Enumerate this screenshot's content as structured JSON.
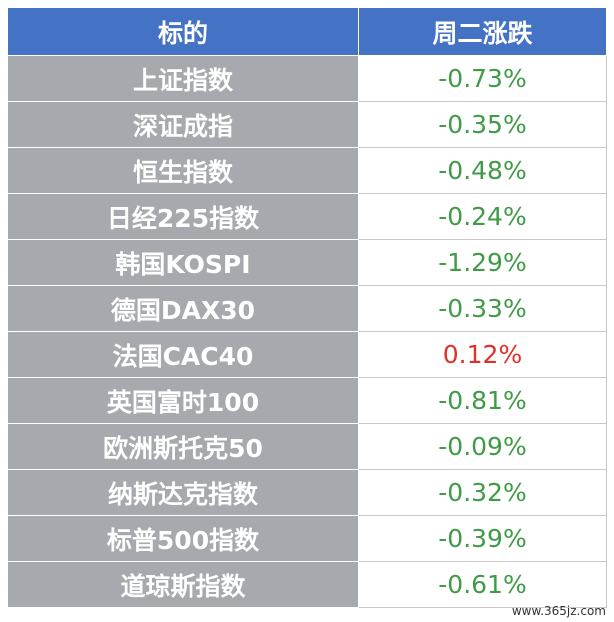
{
  "table": {
    "header": [
      "标的",
      "周二涨跌"
    ],
    "rows": [
      {
        "name": "上证指数",
        "change": "-0.73%",
        "color": "#3f9b45"
      },
      {
        "name": "深证成指",
        "change": "-0.35%",
        "color": "#3f9b45"
      },
      {
        "name": "恒生指数",
        "change": "-0.48%",
        "color": "#3f9b45"
      },
      {
        "name": "日经225指数",
        "change": "-0.24%",
        "color": "#3f9b45"
      },
      {
        "name": "韩国KOSPI",
        "change": "-1.29%",
        "color": "#3f9b45"
      },
      {
        "name": "德国DAX30",
        "change": "-0.33%",
        "color": "#3f9b45"
      },
      {
        "name": "法国CAC40",
        "change": "0.12%",
        "color": "#e0302a"
      },
      {
        "name": "英国富时100",
        "change": "-0.81%",
        "color": "#3f9b45"
      },
      {
        "name": "欧洲斯托克50",
        "change": "-0.09%",
        "color": "#3f9b45"
      },
      {
        "name": "纳斯达克指数",
        "change": "-0.32%",
        "color": "#3f9b45"
      },
      {
        "name": "标普500指数",
        "change": "-0.39%",
        "color": "#3f9b45"
      },
      {
        "name": "道琼斯指数",
        "change": "-0.61%",
        "color": "#3f9b45"
      }
    ]
  },
  "watermark": "www.365jz.com"
}
